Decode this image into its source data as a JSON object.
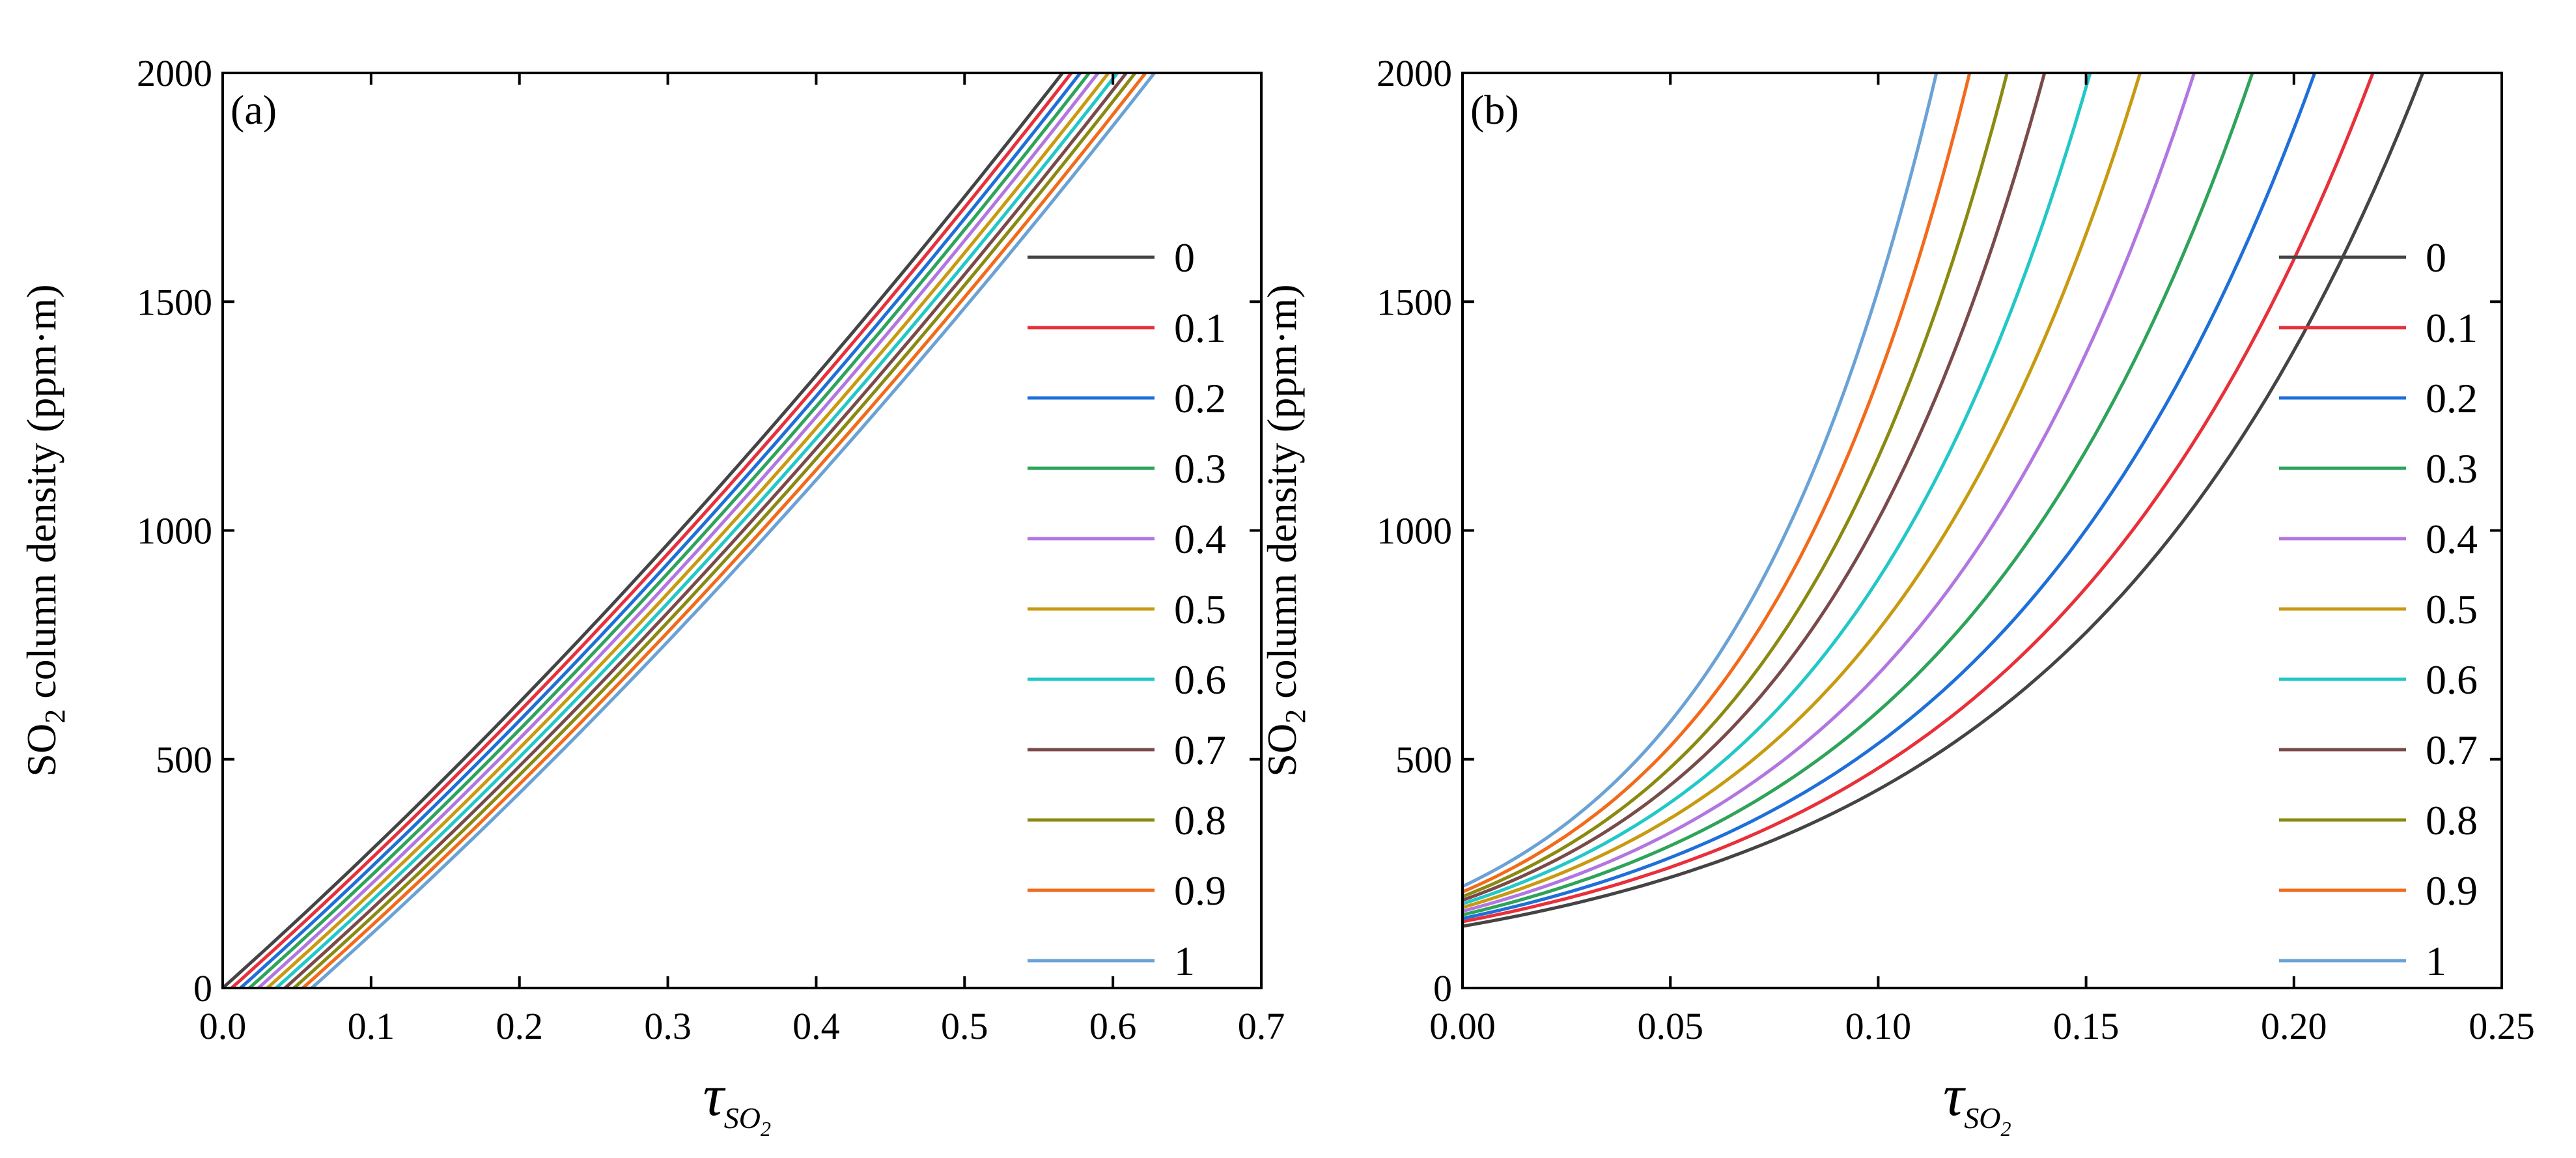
{
  "chart_data": [
    {
      "type": "line",
      "panel_label": "(a)",
      "xlabel_symbol": "τ",
      "xlabel_subscript": "SO",
      "xlabel_subsubscript": "2",
      "ylabel_prefix": "SO",
      "ylabel_subscript": "2",
      "ylabel_suffix": " column density (ppm·m)",
      "xlim": [
        0,
        0.7
      ],
      "ylim": [
        0,
        2000
      ],
      "xticks": [
        "0.0",
        "0.1",
        "0.2",
        "0.3",
        "0.4",
        "0.5",
        "0.6",
        "0.7"
      ],
      "yticks": [
        "0",
        "500",
        "1000",
        "1500",
        "2000"
      ],
      "legend_position": "right",
      "series": [
        {
          "name": "0",
          "color": "#444444",
          "x": [
            0.0,
            0.566
          ],
          "y": [
            0,
            2000
          ],
          "curvature": 0.18
        },
        {
          "name": "0.1",
          "color": "#e8303a",
          "x": [
            0.006,
            0.572
          ],
          "y": [
            0,
            2000
          ],
          "curvature": 0.18
        },
        {
          "name": "0.2",
          "color": "#1f6fd8",
          "x": [
            0.012,
            0.578
          ],
          "y": [
            0,
            2000
          ],
          "curvature": 0.18
        },
        {
          "name": "0.3",
          "color": "#2ea35a",
          "x": [
            0.018,
            0.584
          ],
          "y": [
            0,
            2000
          ],
          "curvature": 0.18
        },
        {
          "name": "0.4",
          "color": "#b276e0",
          "x": [
            0.024,
            0.59
          ],
          "y": [
            0,
            2000
          ],
          "curvature": 0.18
        },
        {
          "name": "0.5",
          "color": "#c89a10",
          "x": [
            0.03,
            0.597
          ],
          "y": [
            0,
            2000
          ],
          "curvature": 0.18
        },
        {
          "name": "0.6",
          "color": "#22c7c7",
          "x": [
            0.036,
            0.603
          ],
          "y": [
            0,
            2000
          ],
          "curvature": 0.18
        },
        {
          "name": "0.7",
          "color": "#7a4a4a",
          "x": [
            0.042,
            0.609
          ],
          "y": [
            0,
            2000
          ],
          "curvature": 0.18
        },
        {
          "name": "0.8",
          "color": "#8a8a12",
          "x": [
            0.048,
            0.615
          ],
          "y": [
            0,
            2000
          ],
          "curvature": 0.18
        },
        {
          "name": "0.9",
          "color": "#f26a1b",
          "x": [
            0.054,
            0.622
          ],
          "y": [
            0,
            2000
          ],
          "curvature": 0.18
        },
        {
          "name": "1",
          "color": "#6aa2d6",
          "x": [
            0.06,
            0.628
          ],
          "y": [
            0,
            2000
          ],
          "curvature": 0.18
        }
      ]
    },
    {
      "type": "line",
      "panel_label": "(b)",
      "xlabel_symbol": "τ",
      "xlabel_subscript": "SO",
      "xlabel_subsubscript": "2",
      "ylabel_prefix": "SO",
      "ylabel_subscript": "2",
      "ylabel_suffix": " column density (ppm·m)",
      "xlim": [
        0,
        0.25
      ],
      "ylim": [
        0,
        2000
      ],
      "xticks": [
        "0.00",
        "0.05",
        "0.10",
        "0.15",
        "0.20",
        "0.25"
      ],
      "yticks": [
        "0",
        "500",
        "1000",
        "1500",
        "2000"
      ],
      "legend_position": "right",
      "series": [
        {
          "name": "0",
          "color": "#444444",
          "y0": 135,
          "x_end": 0.231
        },
        {
          "name": "0.1",
          "color": "#e8303a",
          "y0": 145,
          "x_end": 0.219
        },
        {
          "name": "0.2",
          "color": "#1f6fd8",
          "y0": 152,
          "x_end": 0.205
        },
        {
          "name": "0.3",
          "color": "#2ea35a",
          "y0": 160,
          "x_end": 0.19
        },
        {
          "name": "0.4",
          "color": "#b276e0",
          "y0": 168,
          "x_end": 0.176
        },
        {
          "name": "0.5",
          "color": "#c89a10",
          "y0": 176,
          "x_end": 0.163
        },
        {
          "name": "0.6",
          "color": "#22c7c7",
          "y0": 184,
          "x_end": 0.151
        },
        {
          "name": "0.7",
          "color": "#7a4a4a",
          "y0": 192,
          "x_end": 0.14
        },
        {
          "name": "0.8",
          "color": "#8a8a12",
          "y0": 200,
          "x_end": 0.131
        },
        {
          "name": "0.9",
          "color": "#f26a1b",
          "y0": 210,
          "x_end": 0.122
        },
        {
          "name": "1",
          "color": "#6aa2d6",
          "y0": 222,
          "x_end": 0.114
        }
      ]
    }
  ]
}
